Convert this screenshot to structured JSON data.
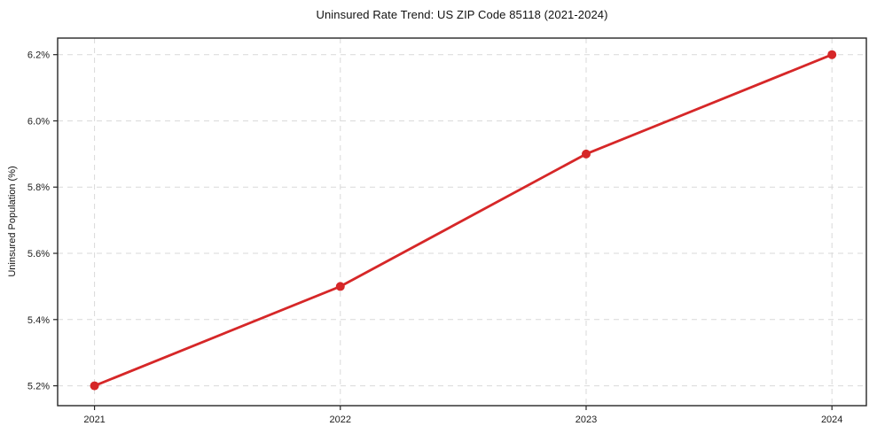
{
  "chart_data": {
    "type": "line",
    "title": "Uninsured Rate Trend: US ZIP Code 85118 (2021-2024)",
    "xlabel": "",
    "ylabel": "Uninsured Population (%)",
    "x": [
      2021,
      2022,
      2023,
      2024
    ],
    "x_tick_labels": [
      "2021",
      "2022",
      "2023",
      "2024"
    ],
    "series": [
      {
        "name": "uninsured-rate",
        "values": [
          5.2,
          5.5,
          5.9,
          6.2
        ]
      }
    ],
    "y_ticks": [
      5.2,
      5.4,
      5.6,
      5.8,
      6.0,
      6.2
    ],
    "y_tick_labels": [
      "5.2%",
      "5.4%",
      "5.6%",
      "5.8%",
      "6.0%",
      "6.2%"
    ],
    "xlim": [
      2020.85,
      2024.14
    ],
    "ylim": [
      5.14,
      6.25
    ],
    "grid": "dashed, both axes",
    "legend": "none"
  },
  "colors": {
    "line": "#d62728",
    "marker": "#d62728",
    "grid": "#d9d9d9",
    "frame": "#262626",
    "tick_text": "#1c1c1c",
    "background": "#ffffff"
  }
}
